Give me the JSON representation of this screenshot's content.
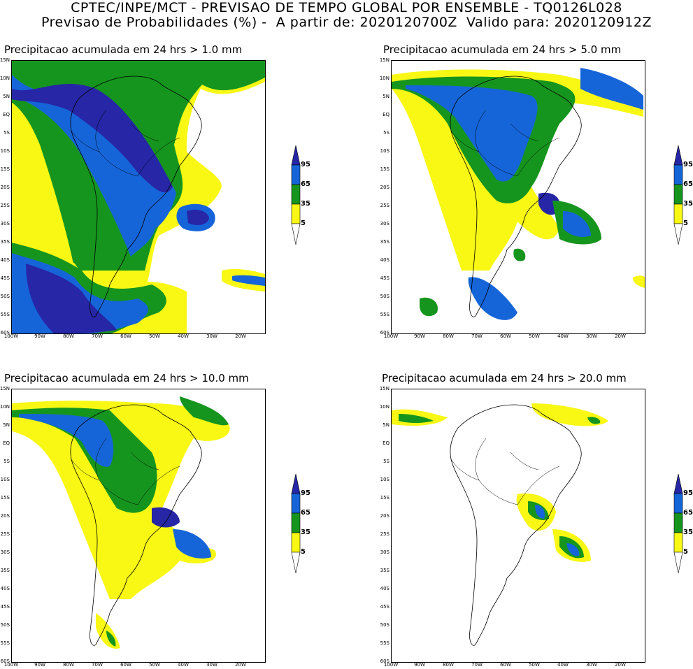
{
  "header": {
    "line1": "CPTEC/INPE/MCT - PREVISAO DE TEMPO GLOBAL POR ENSEMBLE - TQ0126L028",
    "line2": "Previsao de Probabilidades (%) -  A partir de: 2020120700Z  Valido para: 2020120912Z"
  },
  "axes": {
    "lat_ticks": [
      "15N",
      "10N",
      "5N",
      "EQ",
      "5S",
      "10S",
      "15S",
      "20S",
      "25S",
      "30S",
      "35S",
      "40S",
      "45S",
      "50S",
      "55S",
      "60S"
    ],
    "lon_ticks": [
      "100W",
      "90W",
      "80W",
      "70W",
      "60W",
      "50W",
      "40W",
      "30W",
      "20W"
    ]
  },
  "legend": {
    "levels": [
      "95",
      "65",
      "35",
      "5"
    ],
    "colors": [
      "#2626a6",
      "#1565d9",
      "#16951e",
      "#f8f814"
    ]
  },
  "panels": [
    {
      "title": "Precipitacao acumulada em 24 hrs > 1.0 mm"
    },
    {
      "title": "Precipitacao acumulada em 24 hrs > 5.0 mm"
    },
    {
      "title": "Precipitacao acumulada em 24 hrs > 10.0 mm"
    },
    {
      "title": "Precipitacao acumulada em 24 hrs > 20.0 mm"
    }
  ]
}
